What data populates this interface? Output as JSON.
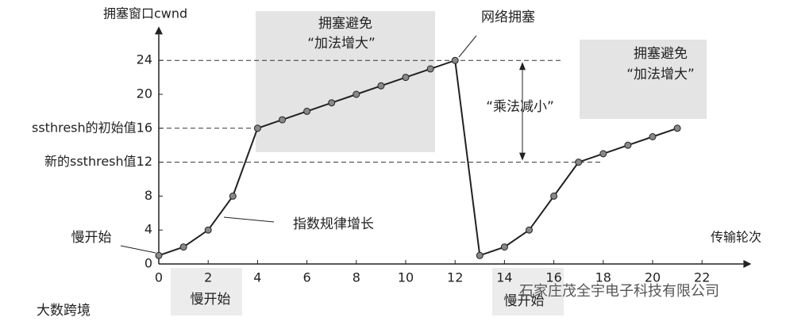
{
  "chart_data": {
    "type": "line",
    "y_label": "拥塞窗口cwnd",
    "x_label": "传输轮次",
    "x": [
      0,
      1,
      2,
      3,
      4,
      5,
      6,
      7,
      8,
      9,
      10,
      11,
      12,
      13,
      14,
      15,
      16,
      17,
      18,
      19,
      20,
      21
    ],
    "series": [
      {
        "color": "#222222",
        "values": [
          1,
          2,
          4,
          8,
          16,
          17,
          18,
          19,
          20,
          21,
          22,
          23,
          24,
          1,
          2,
          4,
          8,
          12,
          13,
          14,
          15,
          16
        ]
      }
    ],
    "xlim": [
      0,
      24
    ],
    "ylim": [
      0,
      28
    ],
    "xticks": [
      0,
      2,
      4,
      6,
      8,
      10,
      12,
      14,
      16,
      18,
      20,
      22
    ],
    "yticks": [
      0,
      4,
      8,
      {
        "value": 12,
        "label": "新的ssthresh值12"
      },
      {
        "value": 16,
        "label": "ssthresh的初始值16"
      },
      20,
      24
    ],
    "reference_lines": [
      24,
      16,
      12
    ],
    "grid": false,
    "annotations": [
      "拥塞避免",
      "“加法增大”",
      "网络拥塞",
      "“乘法减小”",
      "指数规律增长",
      "慢开始",
      "慢开始",
      "慢开始",
      "拥塞避免",
      "“加法增大”",
      "大数跨境",
      "石家庄茂全宇电子科技有限公司"
    ]
  }
}
